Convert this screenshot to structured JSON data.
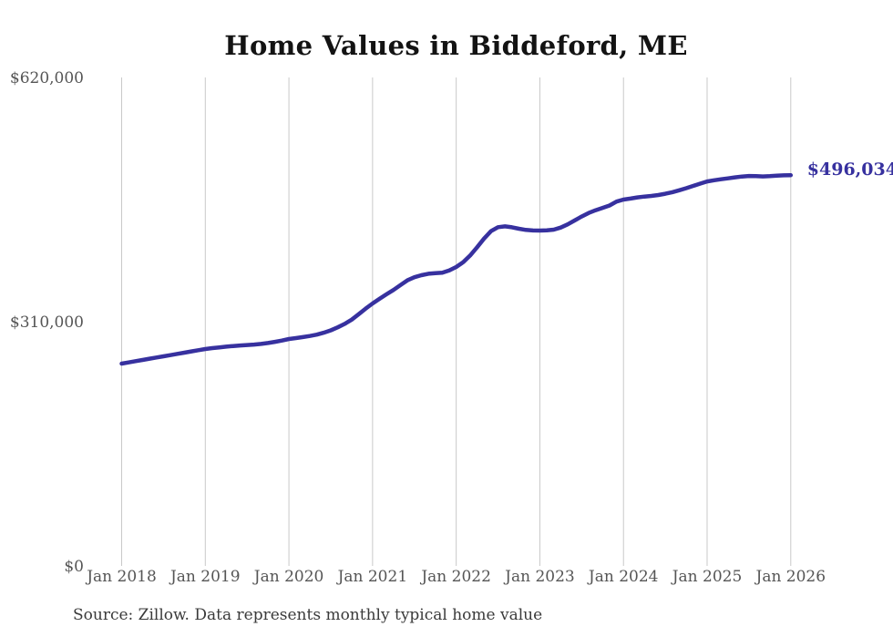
{
  "chart_data": {
    "type": "line",
    "title": "Home Values in Biddeford, ME",
    "source_note": "Source: Zillow. Data represents monthly typical home value",
    "series_name": "Monthly typical home value",
    "frequency": "monthly",
    "start_month": "Jan 2018",
    "end_month": "Jan 2026",
    "line_color": "#37319f",
    "grid_color": "#c9c9c9",
    "axis_label_color": "#555555",
    "title_color": "#131313",
    "background_color": "#ffffff",
    "ylim": [
      0,
      620000
    ],
    "grid": "vertical-only",
    "x_tick_labels": [
      "Jan 2018",
      "Jan 2019",
      "Jan 2020",
      "Jan 2021",
      "Jan 2022",
      "Jan 2023",
      "Jan 2024",
      "Jan 2025",
      "Jan 2026"
    ],
    "y_ticks": [
      {
        "label": "$0",
        "value": 0
      },
      {
        "label": "$310,000",
        "value": 310000
      },
      {
        "label": "$620,000",
        "value": 620000
      }
    ],
    "end_label": "$496,034",
    "end_value": 496034,
    "values_unit": "USD",
    "values": [
      256800,
      258300,
      259900,
      261400,
      263000,
      264500,
      266100,
      267600,
      269200,
      270700,
      272300,
      273800,
      275300,
      276400,
      277400,
      278300,
      279100,
      279800,
      280400,
      281000,
      281800,
      282900,
      284400,
      286100,
      288000,
      289200,
      290400,
      291800,
      293600,
      296000,
      299000,
      302800,
      307200,
      312500,
      319500,
      326500,
      333100,
      339000,
      344800,
      350300,
      356500,
      362500,
      366500,
      369000,
      370800,
      371600,
      372100,
      375000,
      379400,
      385500,
      394000,
      404500,
      415500,
      425000,
      430000,
      431000,
      429800,
      428000,
      426500,
      425800,
      425700,
      425900,
      426800,
      429500,
      433500,
      438500,
      443500,
      448000,
      451500,
      454500,
      457500,
      462500,
      465000,
      466300,
      467800,
      468800,
      469600,
      470800,
      472400,
      474400,
      476800,
      479500,
      482300,
      485200,
      488000,
      489500,
      490800,
      492000,
      493200,
      494300,
      495000,
      494800,
      494400,
      494700,
      495300,
      495800,
      496034
    ]
  }
}
